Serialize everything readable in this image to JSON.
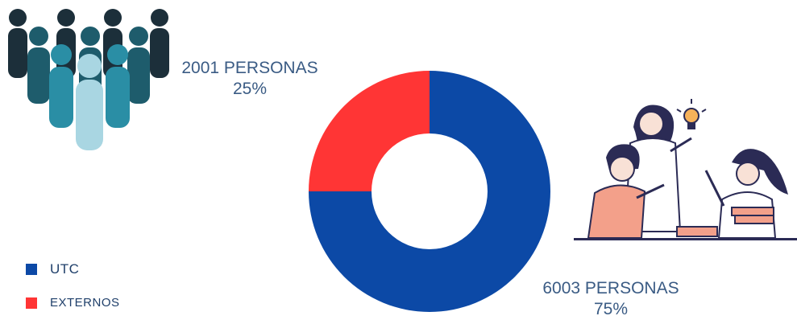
{
  "chart_data": {
    "type": "pie",
    "donut": true,
    "slices": [
      {
        "label": "UTC",
        "value": 6003,
        "percent": 75,
        "color": "#0c49a6"
      },
      {
        "label": "EXTERNOS",
        "value": 2001,
        "percent": 25,
        "color": "#ff3535"
      }
    ],
    "legend_position": "bottom-left"
  },
  "callouts": {
    "externos_count": "2001 PERSONAS",
    "externos_percent": "25%",
    "utc_count": "6003 PERSONAS",
    "utc_percent": "75%"
  },
  "legend": {
    "items": [
      {
        "label": "UTC",
        "color": "#0c49a6"
      },
      {
        "label": "EXTERNOS",
        "color": "#ff3535"
      }
    ]
  },
  "illustrations": {
    "left": "crowd-of-people-icon",
    "right": "students-with-lightbulb-illustration"
  }
}
